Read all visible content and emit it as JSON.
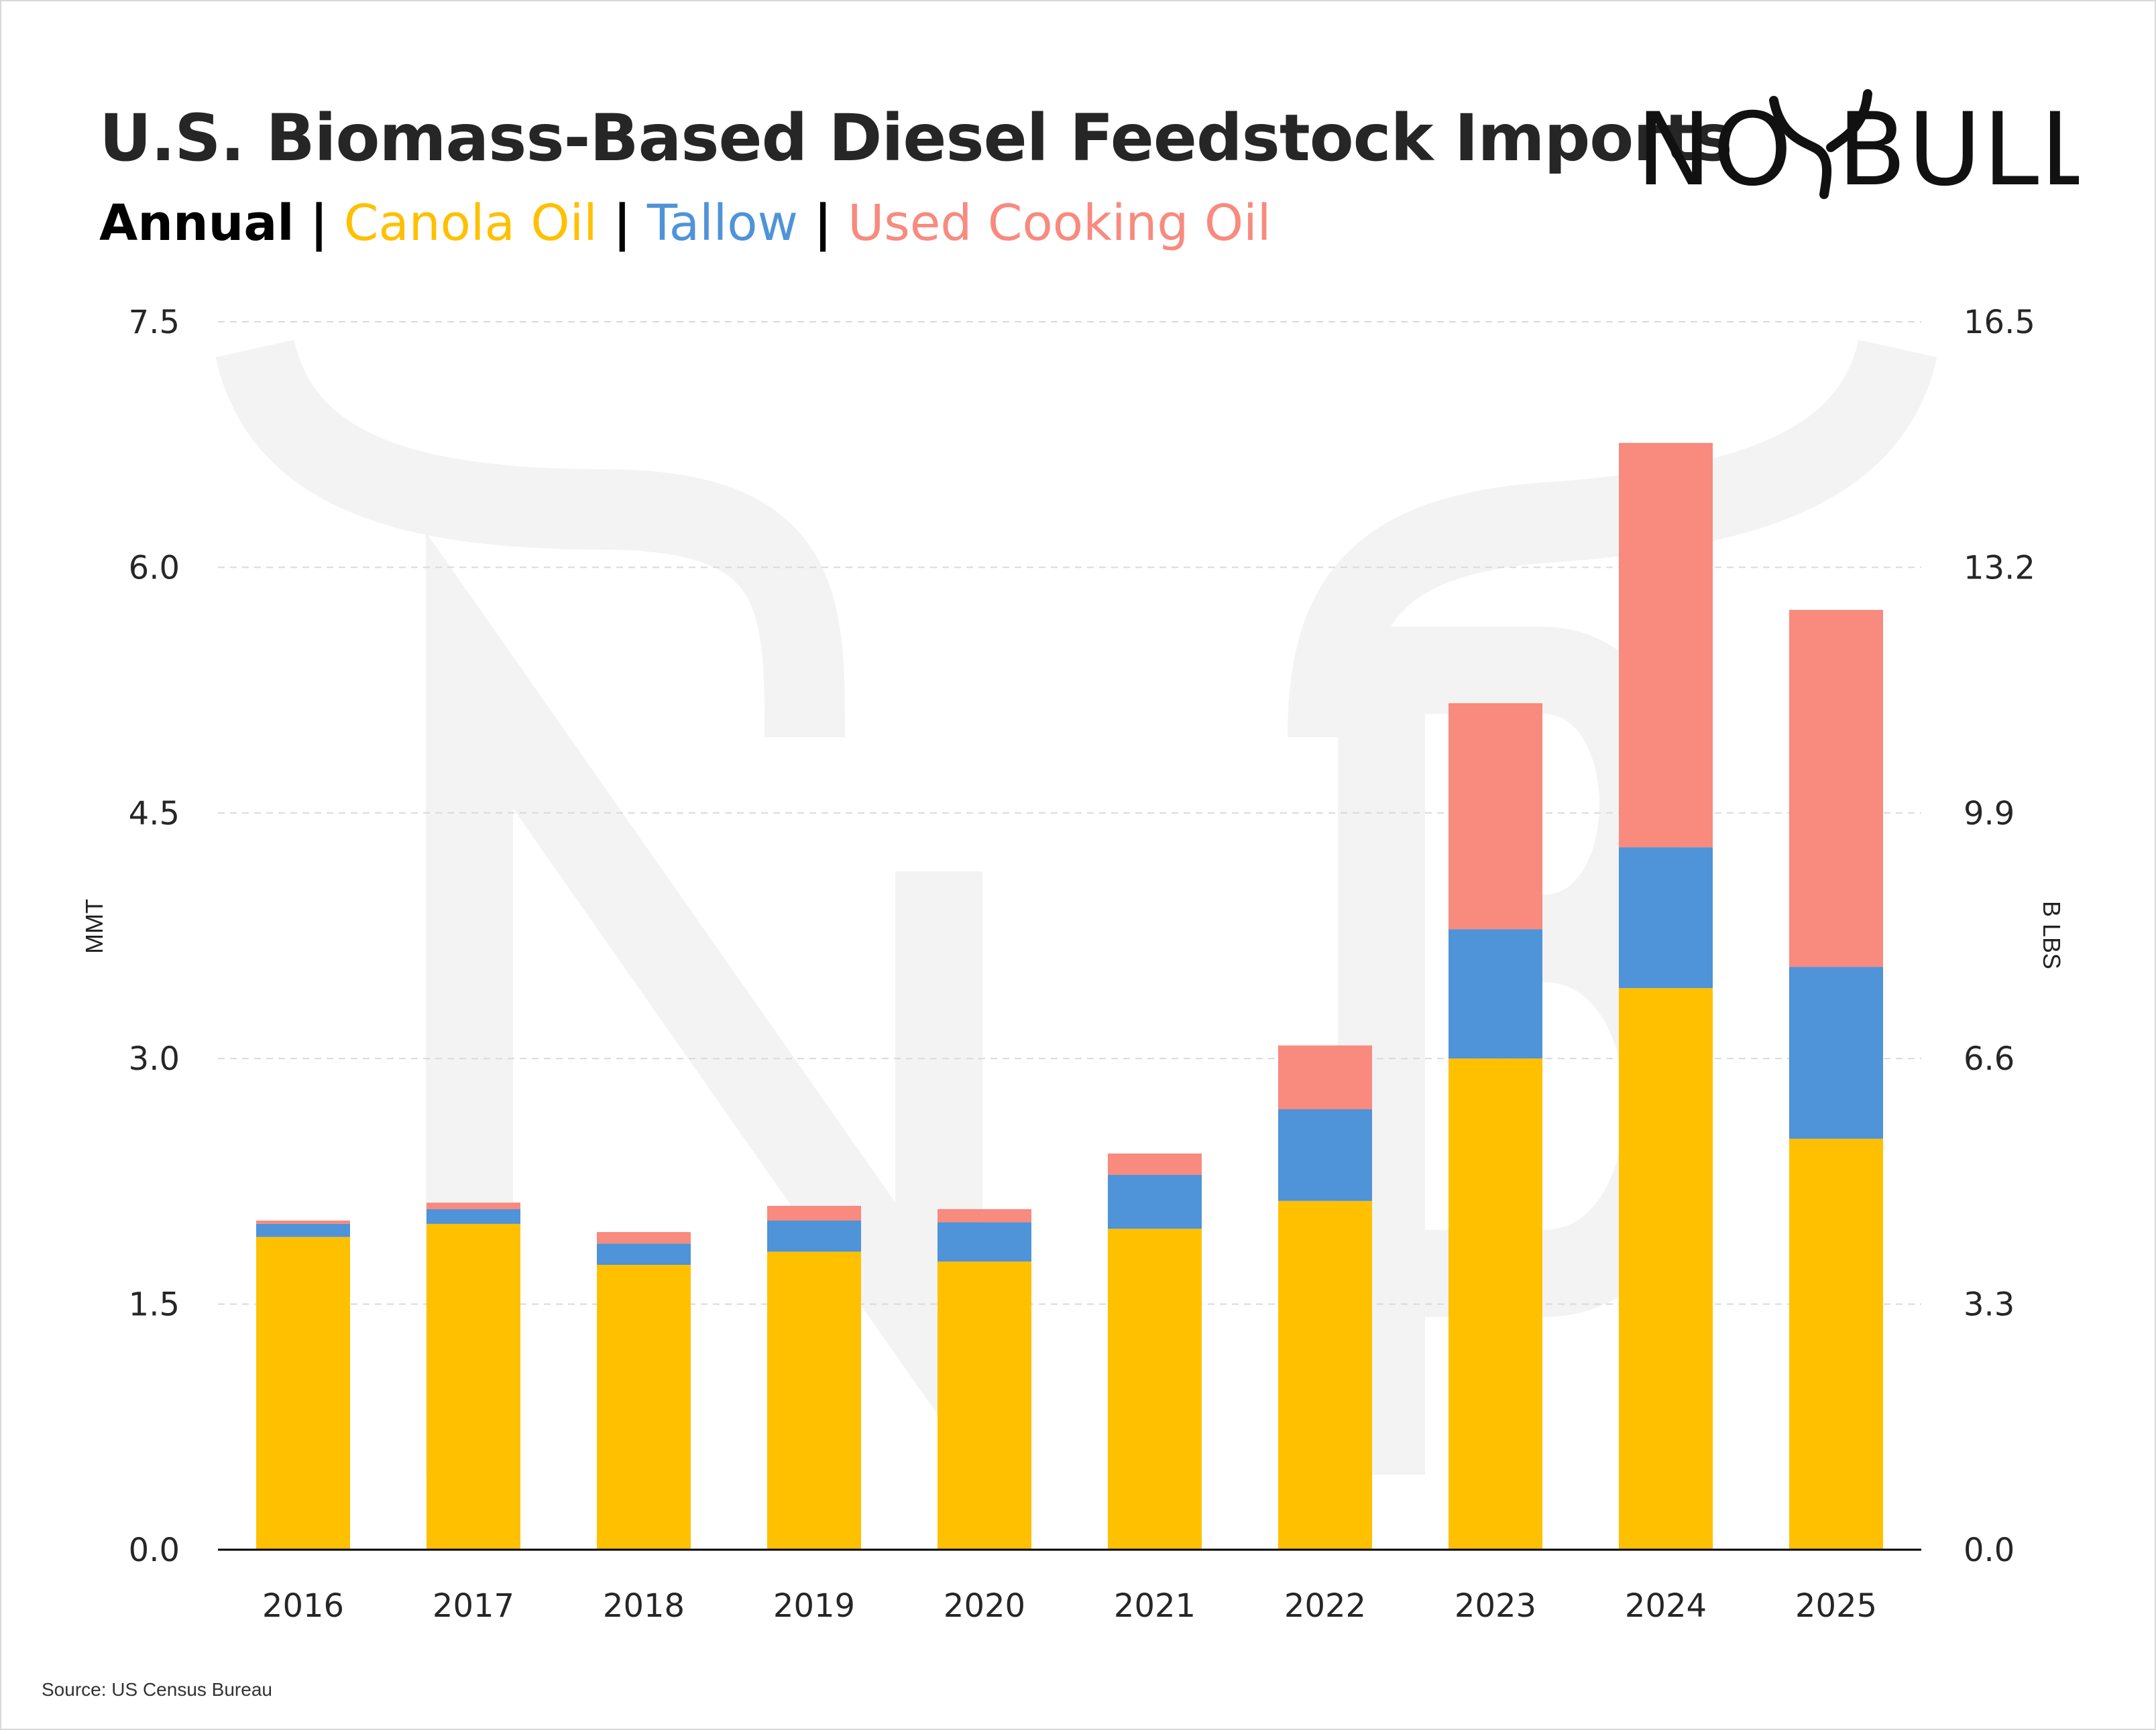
{
  "title": "U.S. Biomass-Based Diesel Feedstock Imports",
  "subtitle": {
    "frequency": "Annual",
    "separator": "|",
    "series_labels": [
      "Canola Oil",
      "Tallow",
      "Used Cooking Oil"
    ]
  },
  "logo": {
    "text_left": "NO",
    "text_right": "BULL",
    "icon": "bull-horns-icon"
  },
  "source": "Source: US Census Bureau",
  "colors": {
    "canola": "#FFC000",
    "tallow": "#4F93D8",
    "uco": "#F88A7E",
    "grid": "#d9d9d9",
    "axis": "#000000",
    "watermark": "#f2f2f2"
  },
  "chart_data": {
    "type": "bar",
    "stacked": true,
    "categories": [
      "2016",
      "2017",
      "2018",
      "2019",
      "2020",
      "2021",
      "2022",
      "2023",
      "2024",
      "2025"
    ],
    "series": [
      {
        "name": "Canola Oil",
        "color": "#FFC000",
        "values": [
          1.91,
          1.99,
          1.74,
          1.82,
          1.76,
          1.96,
          2.13,
          3.0,
          3.43,
          2.51
        ]
      },
      {
        "name": "Tallow",
        "color": "#4F93D8",
        "values": [
          0.08,
          0.09,
          0.13,
          0.19,
          0.24,
          0.33,
          0.56,
          0.79,
          0.86,
          1.05
        ]
      },
      {
        "name": "Used Cooking Oil",
        "color": "#F88A7E",
        "values": [
          0.02,
          0.04,
          0.07,
          0.09,
          0.08,
          0.13,
          0.39,
          1.38,
          2.47,
          2.18
        ]
      }
    ],
    "ylabel": "MMT",
    "y2label": "B LBS",
    "ylim": [
      0,
      7.5
    ],
    "y2lim": [
      0,
      16.5
    ],
    "yticks": [
      "0.0",
      "1.5",
      "3.0",
      "4.5",
      "6.0",
      "7.5"
    ],
    "y2ticks": [
      "0.0",
      "3.3",
      "6.6",
      "9.9",
      "13.2",
      "16.5"
    ],
    "grid": true,
    "legend": "subtitle"
  }
}
